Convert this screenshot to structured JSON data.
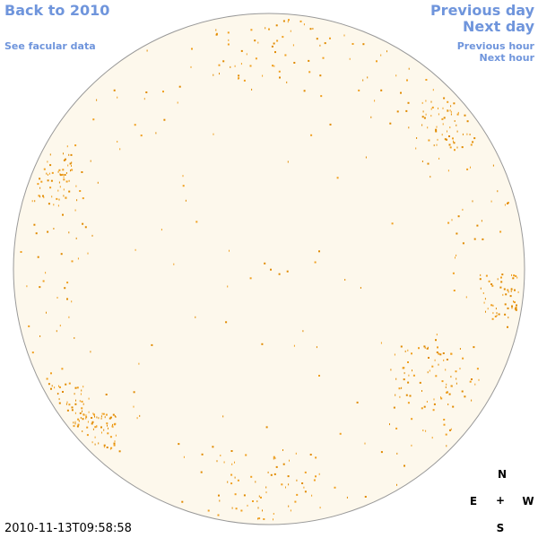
{
  "links": {
    "back": "Back to 2010",
    "facular": "See facular data",
    "previous_day": "Previous day",
    "next_day": "Next day",
    "previous_hour": "Previous hour",
    "next_hour": "Next hour"
  },
  "timestamp": "2010-11-13T09:58:58",
  "compass": {
    "north": "N",
    "east": "E",
    "center": "+",
    "west": "W",
    "south": "S"
  }
}
